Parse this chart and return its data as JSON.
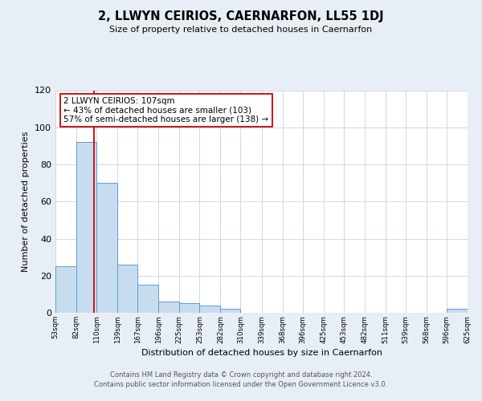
{
  "title": "2, LLWYN CEIRIOS, CAERNARFON, LL55 1DJ",
  "subtitle": "Size of property relative to detached houses in Caernarfon",
  "xlabel": "Distribution of detached houses by size in Caernarfon",
  "ylabel": "Number of detached properties",
  "bar_edges": [
    53,
    82,
    110,
    139,
    167,
    196,
    225,
    253,
    282,
    310,
    339,
    368,
    396,
    425,
    453,
    482,
    511,
    539,
    568,
    596,
    625
  ],
  "bar_heights": [
    25,
    92,
    70,
    26,
    15,
    6,
    5,
    4,
    2,
    0,
    0,
    0,
    0,
    0,
    0,
    0,
    0,
    0,
    0,
    2
  ],
  "bar_color": "#c8dcf0",
  "bar_edge_color": "#5b9bd5",
  "vline_x": 107,
  "vline_color": "#cc0000",
  "ylim": [
    0,
    120
  ],
  "annotation_title": "2 LLWYN CEIRIOS: 107sqm",
  "annotation_line1": "← 43% of detached houses are smaller (103)",
  "annotation_line2": "57% of semi-detached houses are larger (138) →",
  "annotation_box_edge": "#cc0000",
  "footer1": "Contains HM Land Registry data © Crown copyright and database right 2024.",
  "footer2": "Contains public sector information licensed under the Open Government Licence v3.0.",
  "fig_background_color": "#e8eef5",
  "plot_background": "#ffffff",
  "grid_color": "#d0d8e4",
  "tick_labels": [
    "53sqm",
    "82sqm",
    "110sqm",
    "139sqm",
    "167sqm",
    "196sqm",
    "225sqm",
    "253sqm",
    "282sqm",
    "310sqm",
    "339sqm",
    "368sqm",
    "396sqm",
    "425sqm",
    "453sqm",
    "482sqm",
    "511sqm",
    "539sqm",
    "568sqm",
    "596sqm",
    "625sqm"
  ]
}
